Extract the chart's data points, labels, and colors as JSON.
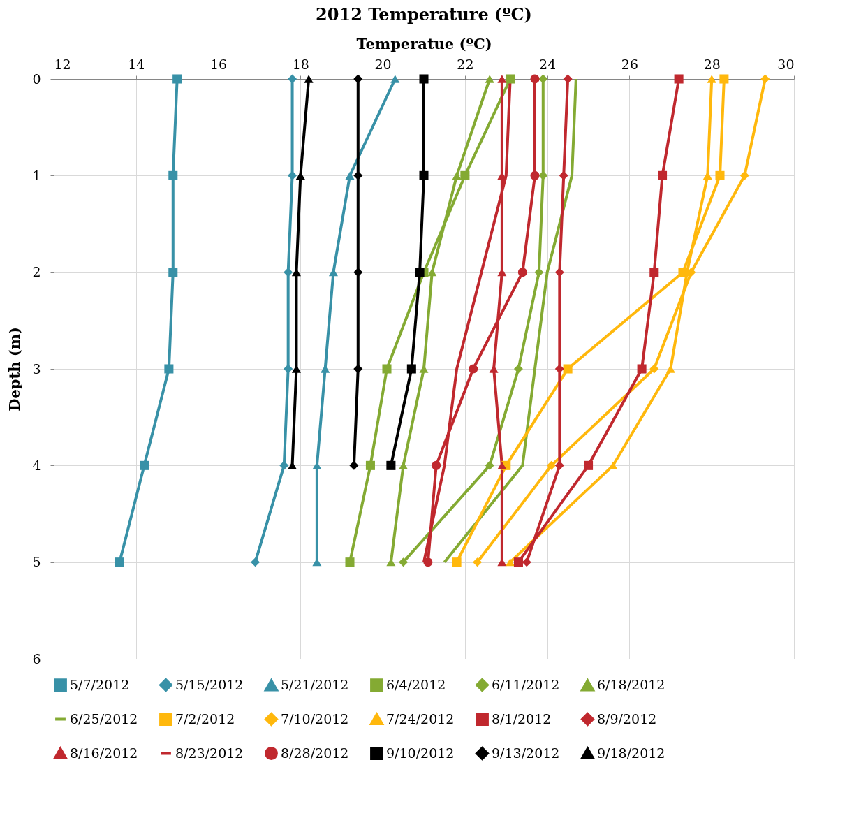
{
  "chart_data": {
    "type": "line",
    "title": "2012 Temperature (ºC)",
    "xlabel": "Temperatue (ºC)",
    "ylabel": "Depth (m)",
    "xlim": [
      12,
      30
    ],
    "xticks": [
      12,
      14,
      16,
      18,
      20,
      22,
      24,
      26,
      28,
      30
    ],
    "ylim": [
      6,
      0
    ],
    "yticks": [
      0,
      1,
      2,
      3,
      4,
      5,
      6
    ],
    "grid": true,
    "legend": "bottom",
    "line_style": "solid",
    "series": [
      {
        "name": "5/7/2012",
        "color": "#3891a7",
        "marker": "square",
        "x": [
          15.0,
          14.9,
          14.9,
          14.8,
          14.2,
          13.6
        ],
        "values": [
          0,
          1,
          2,
          3,
          4,
          5
        ]
      },
      {
        "name": "5/15/2012",
        "color": "#3891a7",
        "marker": "diamond",
        "x": [
          17.8,
          17.8,
          17.7,
          17.7,
          17.6,
          16.9
        ],
        "values": [
          0,
          1,
          2,
          3,
          4,
          5
        ]
      },
      {
        "name": "5/21/2012",
        "color": "#3891a7",
        "marker": "triangle",
        "x": [
          20.3,
          19.2,
          18.8,
          18.6,
          18.4,
          18.4
        ],
        "values": [
          0,
          1,
          2,
          3,
          4,
          5
        ]
      },
      {
        "name": "6/4/2012",
        "color": "#84aa33",
        "marker": "square",
        "x": [
          23.1,
          22.0,
          21.0,
          20.1,
          19.7,
          19.2
        ],
        "values": [
          0,
          1,
          2,
          3,
          4,
          5
        ]
      },
      {
        "name": "6/11/2012",
        "color": "#84aa33",
        "marker": "diamond",
        "x": [
          23.9,
          23.9,
          23.8,
          23.3,
          22.6,
          20.5
        ],
        "values": [
          0,
          1,
          2,
          3,
          4,
          5
        ]
      },
      {
        "name": "6/18/2012",
        "color": "#84aa33",
        "marker": "triangle",
        "x": [
          22.6,
          21.8,
          21.2,
          21.0,
          20.5,
          20.2
        ],
        "values": [
          0,
          1,
          2,
          3,
          4,
          5
        ]
      },
      {
        "name": "6/25/2012",
        "color": "#84aa33",
        "marker": "none",
        "x": [
          24.7,
          24.6,
          24.0,
          23.7,
          23.4,
          21.5
        ],
        "values": [
          0,
          1,
          2,
          3,
          4,
          5
        ]
      },
      {
        "name": "7/2/2012",
        "color": "#ffb80d",
        "marker": "square",
        "x": [
          28.3,
          28.2,
          27.3,
          24.5,
          23.0,
          21.8
        ],
        "values": [
          0,
          1,
          2,
          3,
          4,
          5
        ]
      },
      {
        "name": "7/10/2012",
        "color": "#ffb80d",
        "marker": "diamond",
        "x": [
          29.3,
          28.8,
          27.5,
          26.6,
          24.1,
          22.3
        ],
        "values": [
          0,
          1,
          2,
          3,
          4,
          5
        ]
      },
      {
        "name": "7/24/2012",
        "color": "#ffb80d",
        "marker": "triangle",
        "x": [
          28.0,
          27.9,
          27.4,
          27.0,
          25.6,
          23.1
        ],
        "values": [
          0,
          1,
          2,
          3,
          4,
          5
        ]
      },
      {
        "name": "8/1/2012",
        "color": "#c0282e",
        "marker": "square",
        "x": [
          27.2,
          26.8,
          26.6,
          26.3,
          25.0,
          23.3
        ],
        "values": [
          0,
          1,
          2,
          3,
          4,
          5
        ]
      },
      {
        "name": "8/9/2012",
        "color": "#c0282e",
        "marker": "diamond",
        "x": [
          24.5,
          24.4,
          24.3,
          24.3,
          24.3,
          23.5
        ],
        "values": [
          0,
          1,
          2,
          3,
          4,
          5
        ]
      },
      {
        "name": "8/16/2012",
        "color": "#c0282e",
        "marker": "triangle",
        "x": [
          22.9,
          22.9,
          22.9,
          22.7,
          22.9,
          22.9
        ],
        "values": [
          0,
          1,
          2,
          3,
          4,
          5
        ]
      },
      {
        "name": "8/23/2012",
        "color": "#c0282e",
        "marker": "none",
        "x": [
          23.1,
          23.0,
          22.4,
          21.8,
          21.5,
          21.0
        ],
        "values": [
          0,
          1,
          2,
          3,
          4,
          5
        ]
      },
      {
        "name": "8/28/2012",
        "color": "#c0282e",
        "marker": "circle",
        "x": [
          23.7,
          23.7,
          23.4,
          22.2,
          21.3,
          21.1
        ],
        "values": [
          0,
          1,
          2,
          3,
          4,
          5
        ]
      },
      {
        "name": "9/10/2012",
        "color": "#000000",
        "marker": "square",
        "x": [
          21.0,
          21.0,
          20.9,
          20.7,
          20.2
        ],
        "values": [
          0,
          1,
          2,
          3,
          4
        ]
      },
      {
        "name": "9/13/2012",
        "color": "#000000",
        "marker": "diamond",
        "x": [
          19.4,
          19.4,
          19.4,
          19.4,
          19.3
        ],
        "values": [
          0,
          1,
          2,
          3,
          4
        ]
      },
      {
        "name": "9/18/2012",
        "color": "#000000",
        "marker": "triangle",
        "x": [
          18.2,
          18.0,
          17.9,
          17.9,
          17.8
        ],
        "values": [
          0,
          1,
          2,
          3,
          4
        ]
      }
    ]
  }
}
